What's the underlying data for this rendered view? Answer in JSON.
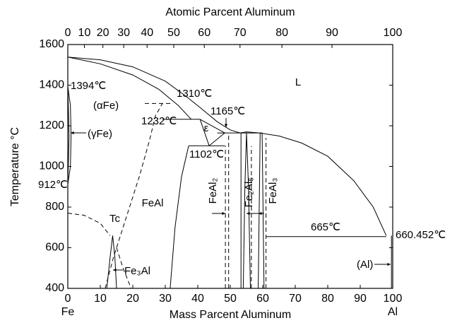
{
  "chart_data": {
    "type": "phase-diagram",
    "x_label": "Mass Parcent Aluminum",
    "x2_label": "Atomic Parcent Aluminum",
    "y_label": "Temperature °C",
    "xlim": [
      0,
      100
    ],
    "ylim": [
      400,
      1600
    ],
    "xticks": [
      0,
      10,
      20,
      30,
      40,
      50,
      60,
      70,
      80,
      90,
      100
    ],
    "yticks": [
      400,
      600,
      800,
      1000,
      1200,
      1400,
      1600
    ],
    "x2ticks": [
      {
        "value": 0,
        "label": "0"
      },
      {
        "value": 5.1,
        "label": "10"
      },
      {
        "value": 10.8,
        "label": "20"
      },
      {
        "value": 17.2,
        "label": "30"
      },
      {
        "value": 24.4,
        "label": "40"
      },
      {
        "value": 32.6,
        "label": "50"
      },
      {
        "value": 42.0,
        "label": "60"
      },
      {
        "value": 53.0,
        "label": "70"
      },
      {
        "value": 65.9,
        "label": "80"
      },
      {
        "value": 81.3,
        "label": "90"
      },
      {
        "value": 100,
        "label": "100"
      }
    ],
    "end_labels": [
      "Fe",
      "Al"
    ],
    "color": "#000000",
    "lines": [
      {
        "x": [
          0,
          10,
          20,
          30,
          36,
          40.7,
          46,
          50,
          53,
          55,
          59,
          65,
          72,
          80,
          88,
          94,
          98
        ],
        "y": [
          1538,
          1525,
          1490,
          1420,
          1350,
          1290,
          1220,
          1180,
          1165,
          1170,
          1165,
          1150,
          1115,
          1050,
          930,
          800,
          660
        ],
        "dash": false
      },
      {
        "x": [
          0,
          10,
          20,
          28,
          34,
          38
        ],
        "y": [
          1538,
          1505,
          1450,
          1380,
          1300,
          1232
        ],
        "dash": false
      },
      {
        "x": [
          29.1,
          40.7
        ],
        "y": [
          1232,
          1232
        ],
        "dash": false
      },
      {
        "x": [
          23.7,
          32.4
        ],
        "y": [
          1310,
          1310
        ],
        "dash": true
      },
      {
        "x": [
          40.7,
          43.5,
          48.3,
          40.7
        ],
        "y": [
          1232,
          1102,
          1165,
          1232
        ],
        "dash": false
      },
      {
        "x": [
          37.2,
          48.3
        ],
        "y": [
          1102,
          1102
        ],
        "dash": false
      },
      {
        "x": [
          46,
          59
        ],
        "y": [
          1165,
          1165
        ],
        "dash": false
      },
      {
        "x": [
          11.5,
          14,
          18,
          22,
          25,
          27,
          29.1
        ],
        "y": [
          400,
          550,
          750,
          950,
          1120,
          1250,
          1310
        ],
        "dash": true
      },
      {
        "x": [
          31.5,
          33,
          35,
          37.2
        ],
        "y": [
          400,
          700,
          950,
          1102
        ],
        "dash": false
      },
      {
        "x": [
          48.5,
          48.5
        ],
        "y": [
          400,
          1102
        ],
        "dash": true
      },
      {
        "x": [
          49.5,
          49.5
        ],
        "y": [
          400,
          1165
        ],
        "dash": true
      },
      {
        "x": [
          53.3,
          53.3
        ],
        "y": [
          400,
          1165
        ],
        "dash": false
      },
      {
        "x": [
          54,
          54.5,
          55,
          55.6,
          56.2
        ],
        "y": [
          400,
          900,
          1165,
          900,
          400
        ],
        "dash": false
      },
      {
        "x": [
          56.5,
          56.5
        ],
        "y": [
          400,
          1100
        ],
        "dash": true
      },
      {
        "x": [
          58.6,
          59.2,
          59.8,
          60.4
        ],
        "y": [
          400,
          1165,
          1165,
          400
        ],
        "dash": false
      },
      {
        "x": [
          61,
          61
        ],
        "y": [
          400,
          1140
        ],
        "dash": true
      },
      {
        "x": [
          61,
          98
        ],
        "y": [
          655,
          655
        ],
        "dash": false
      },
      {
        "x": [
          99.6,
          99.6
        ],
        "y": [
          400,
          660
        ],
        "dash": false
      },
      {
        "x": [
          0,
          5,
          10,
          13
        ],
        "y": [
          770,
          760,
          720,
          660
        ],
        "dash": true
      },
      {
        "x": [
          12,
          13,
          13.8,
          14.5,
          15
        ],
        "y": [
          400,
          550,
          660,
          550,
          400
        ],
        "dash": false
      },
      {
        "x": [
          15,
          17,
          19.5
        ],
        "y": [
          600,
          500,
          400
        ],
        "dash": true
      },
      {
        "x": [
          0,
          0.8,
          1,
          0.8,
          0
        ],
        "y": [
          1394,
          1300,
          1150,
          1000,
          912
        ],
        "dash": false
      },
      {
        "x": [
          0,
          0.4,
          0
        ],
        "y": [
          1394,
          1150,
          912
        ],
        "dash": false
      }
    ],
    "annotations": [
      "1394℃",
      "(αFe)",
      "1310℃",
      "1232℃",
      "1165℃",
      "(γFe)",
      "ε",
      "1102℃",
      "912℃",
      "L",
      "FeAl",
      "Tc",
      "FeAl₂",
      "Fe₂Al₅",
      "FeAl₃",
      "665℃",
      "660.452℃",
      "(Al)",
      "Fe₃Al"
    ]
  }
}
